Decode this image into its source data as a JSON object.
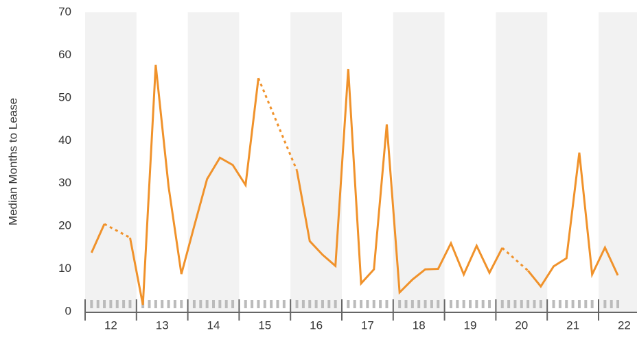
{
  "chart_data": {
    "type": "line",
    "y_label": "Median Months to Lease",
    "categories": [
      null,
      null,
      null,
      null,
      null,
      null,
      null,
      null,
      null,
      null,
      null,
      null,
      null,
      null,
      null,
      null,
      null,
      null,
      null,
      null,
      null,
      null,
      null,
      null,
      null,
      null,
      null,
      null,
      null,
      null,
      null,
      null,
      null,
      null,
      null,
      null,
      null,
      null,
      null,
      null,
      null,
      null
    ],
    "year_labels": [
      "12",
      "13",
      "14",
      "15",
      "16",
      "17",
      "18",
      "19",
      "20",
      "21",
      "22"
    ],
    "series": [
      {
        "name": "Median Months to Lease",
        "color": "#f0922b",
        "values": [
          13.8,
          20.5,
          null,
          17.3,
          1.6,
          57.7,
          29.3,
          8.8,
          20,
          31,
          36,
          34.3,
          29.6,
          54.6,
          null,
          null,
          33,
          16.5,
          13.3,
          10.7,
          56.7,
          6.6,
          9.9,
          43.8,
          4.5,
          7.5,
          9.9,
          10,
          16,
          8.7,
          15.4,
          9.1,
          14.9,
          null,
          9.6,
          5.9,
          10.6,
          12.5,
          37.2,
          8.7,
          15,
          8.5
        ]
      }
    ],
    "ylim": [
      0,
      70
    ],
    "yticks": [
      0,
      10,
      20,
      30,
      40,
      50,
      60,
      70
    ],
    "grid": false
  }
}
